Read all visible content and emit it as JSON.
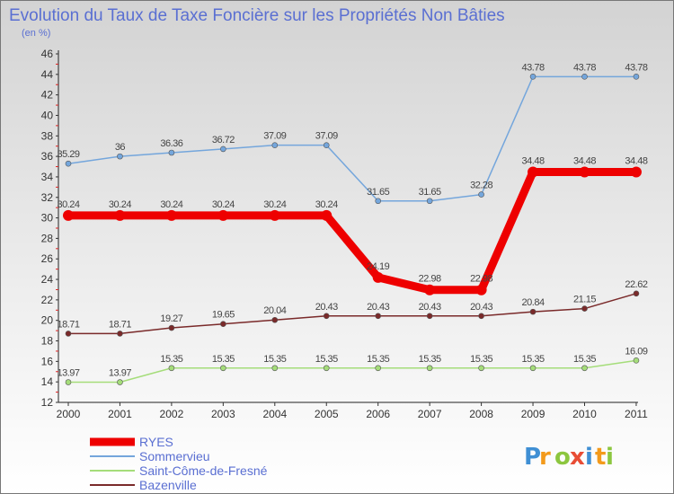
{
  "chart_data": {
    "type": "line",
    "title": "Evolution du Taux de Taxe Foncière sur les Propriétés Non Bâties",
    "subtitle": "(en %)",
    "x": [
      "2000",
      "2001",
      "2002",
      "2003",
      "2004",
      "2005",
      "2006",
      "2007",
      "2008",
      "2009",
      "2010",
      "2011"
    ],
    "ylim": [
      12,
      46
    ],
    "yticks": [
      12,
      14,
      16,
      18,
      20,
      22,
      24,
      26,
      28,
      30,
      32,
      34,
      36,
      38,
      40,
      42,
      44,
      46
    ],
    "grid": false,
    "legend_position": "bottom-left",
    "series": [
      {
        "name": "RYES",
        "color": "#ee0000",
        "values": [
          30.24,
          30.24,
          30.24,
          30.24,
          30.24,
          30.24,
          24.19,
          22.98,
          22.98,
          34.48,
          34.48,
          34.48
        ],
        "labels": [
          "30.24",
          "30.24",
          "30.24",
          "30.24",
          "30.24",
          "30.24",
          "24.19",
          "22.98",
          "22.98",
          "34.48",
          "34.48",
          "34.48"
        ]
      },
      {
        "name": "Sommervieu",
        "color": "#74a6dc",
        "values": [
          35.29,
          36,
          36.36,
          36.72,
          37.09,
          37.09,
          31.65,
          31.65,
          32.28,
          43.78,
          43.78,
          43.78
        ],
        "labels": [
          "35.29",
          "36",
          "36.36",
          "36.72",
          "37.09",
          "37.09",
          "31.65",
          "31.65",
          "32.28",
          "43.78",
          "43.78",
          "43.78"
        ]
      },
      {
        "name": "Saint-Côme-de-Fresné",
        "color": "#a5dd7a",
        "values": [
          13.97,
          13.97,
          15.35,
          15.35,
          15.35,
          15.35,
          15.35,
          15.35,
          15.35,
          15.35,
          15.35,
          16.09
        ],
        "labels": [
          "13.97",
          "13.97",
          "15.35",
          "15.35",
          "15.35",
          "15.35",
          "15.35",
          "15.35",
          "15.35",
          "15.35",
          "15.35",
          "16.09"
        ]
      },
      {
        "name": "Bazenville",
        "color": "#7a2a2a",
        "values": [
          18.71,
          18.71,
          19.27,
          19.65,
          20.04,
          20.43,
          20.43,
          20.43,
          20.43,
          20.84,
          21.15,
          22.62
        ],
        "labels": [
          "18.71",
          "18.71",
          "19.27",
          "19.65",
          "20.04",
          "20.43",
          "20.43",
          "20.43",
          "20.43",
          "20.84",
          "21.15",
          "22.62"
        ]
      }
    ]
  },
  "brand": {
    "letters": [
      "P",
      "r",
      "o",
      "x",
      "i",
      "t",
      "i"
    ],
    "colors": [
      "#3f8fd4",
      "#f39a1b",
      "#8cc63f",
      "#e84d35",
      "#3f8fd4",
      "#f39a1b",
      "#8cc63f"
    ]
  }
}
